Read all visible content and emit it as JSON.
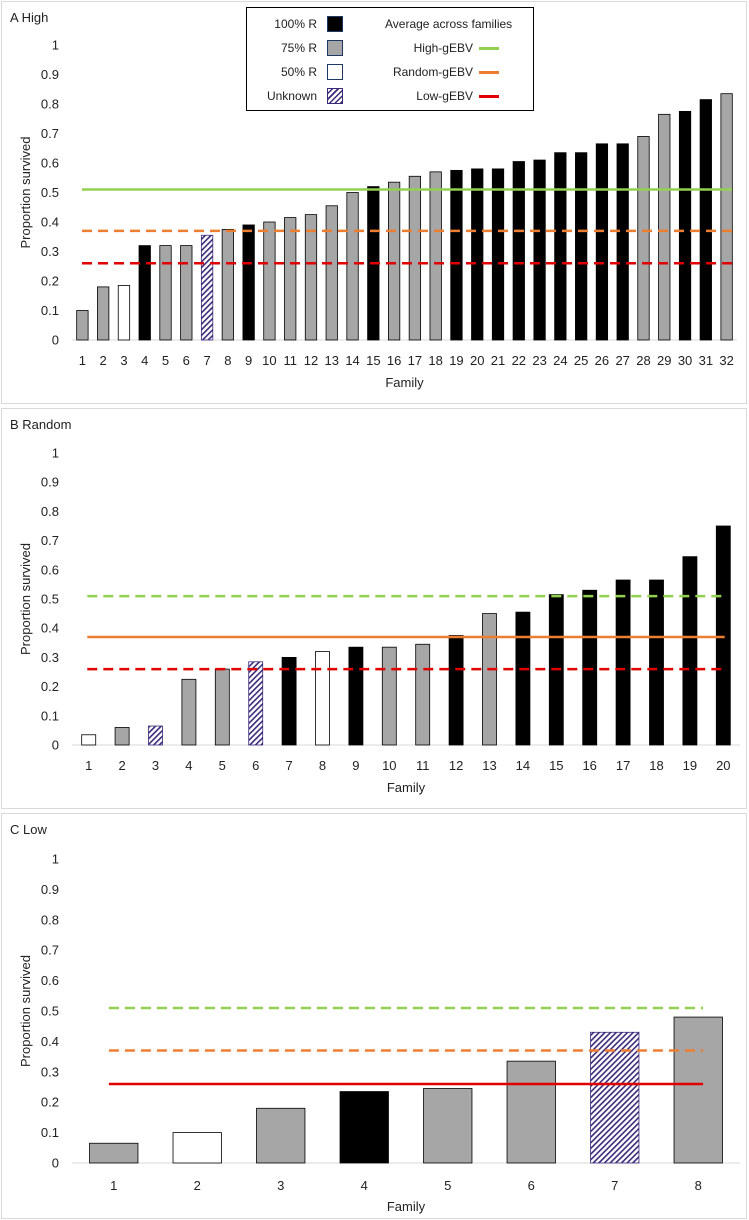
{
  "legend": {
    "header": "Average across families",
    "fill_items": [
      {
        "label": "100% R",
        "style": "solid-black"
      },
      {
        "label": "75% R",
        "style": "solid-gray"
      },
      {
        "label": "50% R",
        "style": "white"
      },
      {
        "label": "Unknown",
        "style": "hatch"
      }
    ],
    "line_items": [
      {
        "label": "High-gEBV",
        "color": "#92d050"
      },
      {
        "label": "Random-gEBV",
        "color": "#ed7d31"
      },
      {
        "label": "Low-gEBV",
        "color": "#e00000"
      }
    ]
  },
  "colors": {
    "black": "#000000",
    "gray": "#a6a6a6",
    "white": "#ffffff",
    "hatch": "#3b2a7a",
    "high": "#92d050",
    "random": "#ed7d31",
    "low": "#e00000"
  },
  "chart_data": [
    {
      "type": "bar",
      "panel_title": "A  High",
      "ylabel": "Proportion survived",
      "xlabel": "Family",
      "ylim": [
        0,
        1
      ],
      "yticks": [
        "0",
        "0.1",
        "0.2",
        "0.3",
        "0.4",
        "0.5",
        "0.6",
        "0.7",
        "0.8",
        "0.9",
        "1"
      ],
      "categories": [
        "1",
        "2",
        "3",
        "4",
        "5",
        "6",
        "7",
        "8",
        "9",
        "10",
        "11",
        "12",
        "13",
        "14",
        "15",
        "16",
        "17",
        "18",
        "19",
        "20",
        "21",
        "22",
        "23",
        "24",
        "25",
        "26",
        "27",
        "28",
        "29",
        "30",
        "31",
        "32"
      ],
      "values": [
        0.1,
        0.18,
        0.185,
        0.32,
        0.32,
        0.32,
        0.355,
        0.375,
        0.39,
        0.4,
        0.415,
        0.425,
        0.455,
        0.5,
        0.52,
        0.535,
        0.555,
        0.57,
        0.575,
        0.58,
        0.58,
        0.605,
        0.61,
        0.635,
        0.635,
        0.665,
        0.665,
        0.69,
        0.765,
        0.775,
        0.815,
        0.835
      ],
      "resistance": [
        "75",
        "75",
        "50",
        "100",
        "75",
        "75",
        "unknown",
        "75",
        "100",
        "75",
        "75",
        "75",
        "75",
        "75",
        "100",
        "75",
        "75",
        "75",
        "100",
        "100",
        "100",
        "100",
        "100",
        "100",
        "100",
        "100",
        "100",
        "75",
        "75",
        "100",
        "100",
        "75"
      ],
      "reference_lines": [
        {
          "name": "High-gEBV",
          "value": 0.51,
          "style": "solid",
          "color": "#92d050"
        },
        {
          "name": "Random-gEBV",
          "value": 0.37,
          "style": "dashed",
          "color": "#ed7d31"
        },
        {
          "name": "Low-gEBV",
          "value": 0.26,
          "style": "dashed",
          "color": "#e00000"
        }
      ]
    },
    {
      "type": "bar",
      "panel_title": "B  Random",
      "ylabel": "Proportion survived",
      "xlabel": "Family",
      "ylim": [
        0,
        1
      ],
      "yticks": [
        "0",
        "0.1",
        "0.2",
        "0.3",
        "0.4",
        "0.5",
        "0.6",
        "0.7",
        "0.8",
        "0.9",
        "1"
      ],
      "categories": [
        "1",
        "2",
        "3",
        "4",
        "5",
        "6",
        "7",
        "8",
        "9",
        "10",
        "11",
        "12",
        "13",
        "14",
        "15",
        "16",
        "17",
        "18",
        "19",
        "20"
      ],
      "values": [
        0.035,
        0.06,
        0.065,
        0.225,
        0.26,
        0.285,
        0.3,
        0.32,
        0.335,
        0.335,
        0.345,
        0.375,
        0.45,
        0.455,
        0.515,
        0.53,
        0.565,
        0.565,
        0.645,
        0.75
      ],
      "resistance": [
        "50",
        "75",
        "unknown",
        "75",
        "75",
        "unknown",
        "100",
        "50",
        "100",
        "75",
        "75",
        "100",
        "75",
        "100",
        "100",
        "100",
        "100",
        "100",
        "100",
        "100"
      ],
      "reference_lines": [
        {
          "name": "High-gEBV",
          "value": 0.51,
          "style": "dashed",
          "color": "#92d050"
        },
        {
          "name": "Random-gEBV",
          "value": 0.37,
          "style": "solid",
          "color": "#ed7d31"
        },
        {
          "name": "Low-gEBV",
          "value": 0.26,
          "style": "dashed",
          "color": "#e00000"
        }
      ]
    },
    {
      "type": "bar",
      "panel_title": "C  Low",
      "ylabel": "Proportion survived",
      "xlabel": "Family",
      "ylim": [
        0,
        1
      ],
      "yticks": [
        "0",
        "0.1",
        "0.2",
        "0.3",
        "0.4",
        "0.5",
        "0.6",
        "0.7",
        "0.8",
        "0.9",
        "1"
      ],
      "categories": [
        "1",
        "2",
        "3",
        "4",
        "5",
        "6",
        "7",
        "8"
      ],
      "values": [
        0.065,
        0.1,
        0.18,
        0.235,
        0.245,
        0.335,
        0.43,
        0.48
      ],
      "resistance": [
        "75",
        "50",
        "75",
        "100",
        "75",
        "75",
        "unknown",
        "75"
      ],
      "reference_lines": [
        {
          "name": "High-gEBV",
          "value": 0.51,
          "style": "dashed",
          "color": "#92d050"
        },
        {
          "name": "Random-gEBV",
          "value": 0.37,
          "style": "dashed",
          "color": "#ed7d31"
        },
        {
          "name": "Low-gEBV",
          "value": 0.26,
          "style": "solid",
          "color": "#e00000"
        }
      ]
    }
  ]
}
